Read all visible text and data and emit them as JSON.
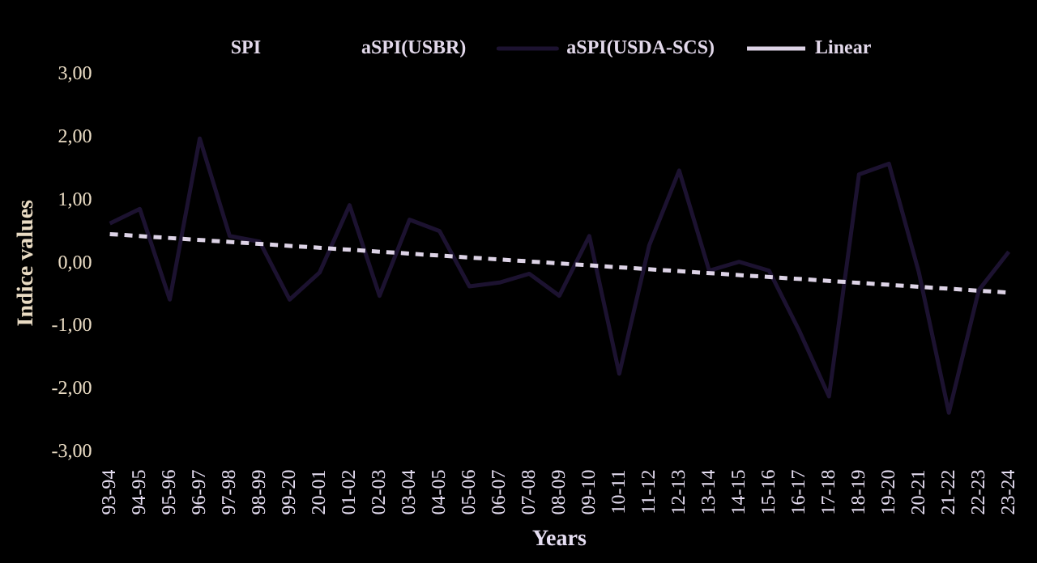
{
  "chart_data": {
    "type": "line",
    "xlabel": "Years",
    "ylabel": "Indice values",
    "categories": [
      "93-94",
      "94-95",
      "95-96",
      "96-97",
      "97-98",
      "98-99",
      "99-20",
      "20-01",
      "01-02",
      "02-03",
      "03-04",
      "04-05",
      "05-06",
      "06-07",
      "07-08",
      "08-09",
      "09-10",
      "10-11",
      "11-12",
      "12-13",
      "13-14",
      "14-15",
      "15-16",
      "16-17",
      "17-18",
      "18-19",
      "19-20",
      "20-21",
      "21-22",
      "22-23",
      "23-24"
    ],
    "series": [
      {
        "name": "SPI",
        "values": [
          null,
          null,
          null,
          null,
          null,
          null,
          null,
          null,
          null,
          null,
          null,
          null,
          null,
          null,
          null,
          null,
          null,
          null,
          null,
          null,
          null,
          null,
          null,
          null,
          null,
          null,
          null,
          null,
          null,
          null,
          null
        ]
      },
      {
        "name": "aSPI(USBR)",
        "values": [
          null,
          null,
          null,
          null,
          null,
          null,
          null,
          null,
          null,
          null,
          null,
          null,
          null,
          null,
          null,
          null,
          null,
          null,
          null,
          null,
          null,
          null,
          null,
          null,
          null,
          null,
          null,
          null,
          null,
          null,
          null
        ]
      },
      {
        "name": "aSPI(USDA-SCS)",
        "color": "#1c1230",
        "values": [
          0.63,
          0.86,
          -0.58,
          1.98,
          0.43,
          0.34,
          -0.58,
          -0.15,
          0.92,
          -0.52,
          0.69,
          0.51,
          -0.37,
          -0.31,
          -0.17,
          -0.52,
          0.43,
          -1.76,
          0.28,
          1.47,
          -0.12,
          0.02,
          -0.12,
          -1.07,
          -2.12,
          1.41,
          1.58,
          -0.15,
          -2.38,
          -0.43,
          0.18
        ]
      },
      {
        "name": "Linear",
        "type": "line",
        "color": "#ddd3e6",
        "line_style": "dashed",
        "x": [
          "93-94",
          "23-24"
        ],
        "values": [
          0.46,
          -0.47
        ]
      }
    ],
    "ylim": [
      -3,
      3
    ],
    "yticks": [
      {
        "value": -3,
        "label": "-3,00"
      },
      {
        "value": -2,
        "label": "-2,00"
      },
      {
        "value": -1,
        "label": "-1,00"
      },
      {
        "value": 0,
        "label": "0,00"
      },
      {
        "value": 1,
        "label": "1,00"
      },
      {
        "value": 2,
        "label": "2,00"
      },
      {
        "value": 3,
        "label": "3,00"
      }
    ],
    "grid": false,
    "legend": "top",
    "marker": "none"
  }
}
